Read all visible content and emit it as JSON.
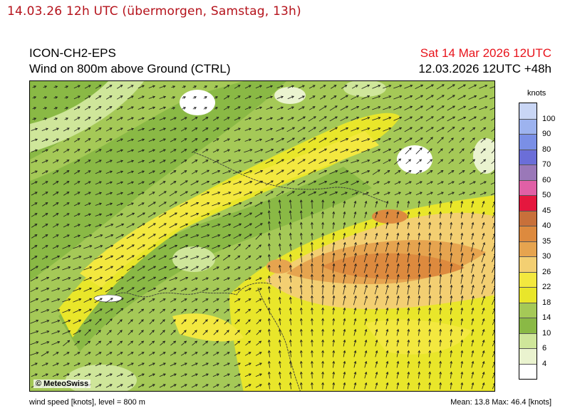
{
  "caption": "14.03.26 12h UTC (übermorgen, Samstag, 13h)",
  "header": {
    "model": "ICON-CH2-EPS",
    "parameter": "Wind on 800m above Ground (CTRL)",
    "valid_time": "Sat 14 Mar 2026 12UTC",
    "run_info": "12.03.2026 12UTC +48h"
  },
  "colors": {
    "caption": "#b5121b",
    "valid_time": "#e8131b",
    "run_info": "#000000"
  },
  "map": {
    "copyright": "© MeteoSwiss"
  },
  "legend": {
    "unit": "knots",
    "labels": [
      "100",
      "90",
      "80",
      "70",
      "60",
      "50",
      "45",
      "40",
      "35",
      "30",
      "26",
      "22",
      "18",
      "14",
      "10",
      "6",
      "4"
    ],
    "colors": [
      "#c9d6f5",
      "#9db3ef",
      "#7a8fe6",
      "#6b6ed8",
      "#9a78b8",
      "#e060a6",
      "#e5173e",
      "#c8703a",
      "#dd8a3e",
      "#e6a44f",
      "#f3cf72",
      "#f3e83f",
      "#e9e62a",
      "#a5c957",
      "#8ab945",
      "#cfe69a",
      "#eaf3cf",
      "#ffffff"
    ]
  },
  "footer": {
    "left": "wind speed [knots], level = 800 m",
    "stats": "Mean:  13.8 Max:  46.4 [knots]"
  }
}
